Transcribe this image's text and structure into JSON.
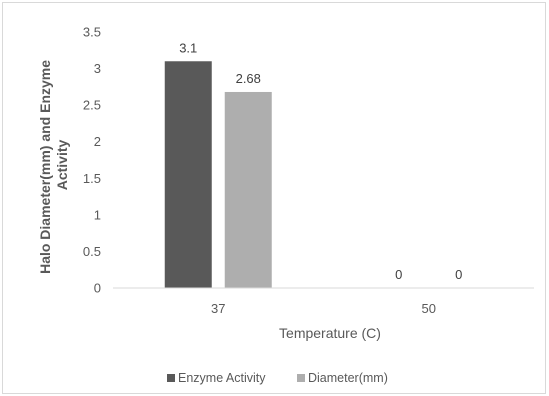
{
  "chart_data": {
    "type": "bar",
    "title": "",
    "categories": [
      "37",
      "50"
    ],
    "series": [
      {
        "name": "Enzyme Activity",
        "color": "#595959",
        "values": [
          3.1,
          0
        ]
      },
      {
        "name": "Diameter(mm)",
        "color": "#aeaeae",
        "values": [
          2.68,
          0
        ]
      }
    ],
    "data_labels": [
      [
        "3.1",
        "0"
      ],
      [
        "2.68",
        "0"
      ]
    ],
    "xlabel": "Temperature (C)",
    "ylabel_lines": [
      "Halo Diameter(mm) and Enzyme",
      "Activity"
    ],
    "ylim": [
      0,
      3.5
    ],
    "yticks": [
      "0",
      "0.5",
      "1",
      "1.5",
      "2",
      "2.5",
      "3",
      "3.5"
    ],
    "grid": false,
    "legend_position": "bottom",
    "axis_color": "#d9d9d9",
    "text_color": "#595959"
  }
}
